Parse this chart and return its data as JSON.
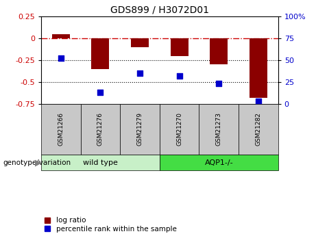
{
  "title": "GDS899 / H3072D01",
  "samples": [
    "GSM21266",
    "GSM21276",
    "GSM21279",
    "GSM21270",
    "GSM21273",
    "GSM21282"
  ],
  "log_ratio": [
    0.05,
    -0.35,
    -0.1,
    -0.2,
    -0.3,
    -0.68
  ],
  "percentile_rank": [
    52,
    13,
    35,
    32,
    23,
    3
  ],
  "ylim_left": [
    -0.75,
    0.25
  ],
  "ylim_right": [
    0,
    100
  ],
  "yticks_left": [
    -0.75,
    -0.5,
    -0.25,
    0,
    0.25
  ],
  "yticks_right": [
    0,
    25,
    50,
    75,
    100
  ],
  "bar_color": "#8B0000",
  "dot_color": "#0000CC",
  "groups": [
    {
      "label": "wild type",
      "indices": [
        0,
        1,
        2
      ],
      "color": "#C8F0C8"
    },
    {
      "label": "AQP1-/-",
      "indices": [
        3,
        4,
        5
      ],
      "color": "#44DD44"
    }
  ],
  "genotype_label": "genotype/variation",
  "legend_bar_label": "log ratio",
  "legend_dot_label": "percentile rank within the sample",
  "hline_color": "#CC0000",
  "bg_color": "#FFFFFF",
  "plot_bg": "#FFFFFF",
  "tick_label_bg": "#C8C8C8",
  "bar_width": 0.45,
  "dot_size": 40
}
